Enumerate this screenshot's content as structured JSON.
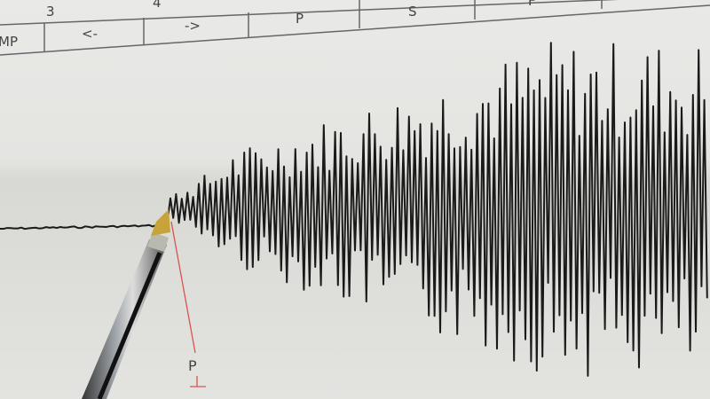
{
  "header_table": {
    "top_row": [
      "3",
      "4",
      "S",
      "F"
    ],
    "bottom_row": [
      "MP",
      "<-",
      "->",
      "P"
    ]
  },
  "pick_marker": {
    "label": "P",
    "color": "#d9534f"
  },
  "colors": {
    "paper": "#e6e6e3",
    "trace": "#1a1a1a",
    "pen_tip": "#c8a23a"
  }
}
